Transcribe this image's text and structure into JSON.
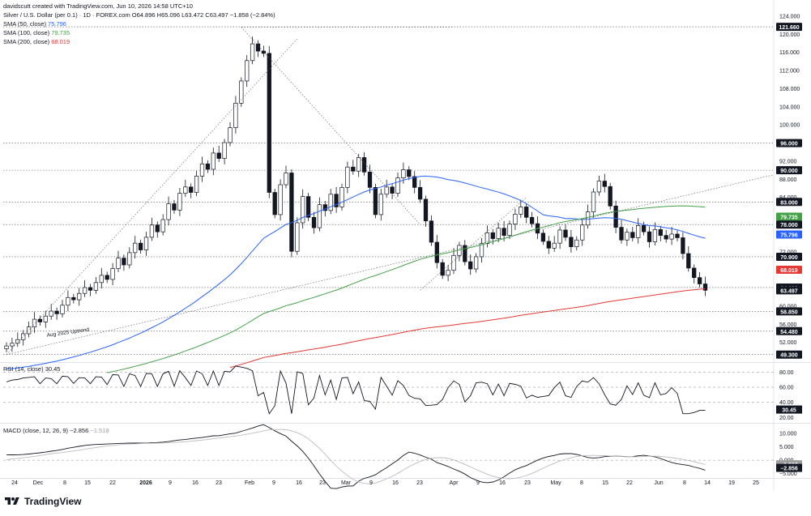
{
  "header": {
    "credit": "davidscutt created with TradingView.com, Jun 10, 2026 14:58 UTC+10",
    "symbol_line": "Silver / U.S. Dollar (per 0.1) · 1D · FOREX.com",
    "ohlc": "O64.896 H65.096 L63.472 C63.497 −1.858 (−2.84%)",
    "sma50_label": "SMA (50, close)",
    "sma50_value": "75.796",
    "sma100_label": "SMA (100, close)",
    "sma100_value": "79.735",
    "sma200_label": "SMA (200, close)",
    "sma200_value": "68.019"
  },
  "rsi": {
    "label": "RSI (14, close)",
    "value": "30.45"
  },
  "macd": {
    "label": "MACD (close, 12, 26, 9)",
    "value1": "−2.856",
    "value2": "−1.518"
  },
  "brand": {
    "name": "TradingView"
  },
  "annotation": "Aug 2025 Uptrend",
  "colors": {
    "sma50": "#2962ff",
    "sma100": "#43a047",
    "sma200": "#e53935",
    "candle": "#131722",
    "badge_dark": "#131722",
    "badge_green": "#43a047",
    "badge_blue": "#2962ff",
    "badge_red": "#e53935"
  },
  "chart_data": {
    "type": "candlestick",
    "xlabel": "",
    "ylabel": "",
    "x_ticks": [
      "24",
      "Dec",
      "8",
      "15",
      "22",
      "2026",
      "9",
      "16",
      "23",
      "Feb",
      "9",
      "16",
      "23",
      "Mar",
      "9",
      "16",
      "23",
      "Apr",
      "9",
      "16",
      "23",
      "May",
      "8",
      "15",
      "22",
      "Jun",
      "8",
      "14",
      "19",
      "25"
    ],
    "y_ticks": [
      52,
      56,
      60,
      64,
      68,
      72,
      76,
      80,
      84,
      88,
      92,
      96,
      100,
      104,
      108,
      112,
      116,
      120,
      124
    ],
    "ylim": [
      48,
      124
    ],
    "price_badges": [
      "121.660",
      "96.000",
      "90.000",
      "83.000",
      "79.735",
      "78.000",
      "75.796",
      "70.900",
      "68.019",
      "64.100",
      "63.497",
      "58.850",
      "54.480",
      "49.300"
    ],
    "horizontal_levels": [
      121.66,
      96.0,
      90.0,
      83.0,
      78.0,
      70.9,
      64.1,
      58.85,
      54.48,
      49.3
    ],
    "last_close": 63.497,
    "grid": false,
    "rsi_levels": [
      "80.00",
      "60.00",
      "40.00",
      "20.00"
    ],
    "rsi_last": "30.45",
    "macd_ticks": [
      "10.000",
      "5.000",
      "0.000",
      "−5.000"
    ],
    "series_note": "Daily OHLC, approximate: rally from ~51 late Nov 2025 to peak ~121.66 end Jan 2026, crash to ~64 early Feb, range 62–96 through Feb–May, decline to 63.497 on Jun 10 2026",
    "closes": [
      51.2,
      51.8,
      52.6,
      53.9,
      55.4,
      57.1,
      56.5,
      57.8,
      58.9,
      58.3,
      60.2,
      61.9,
      61.4,
      62.8,
      64.1,
      63.5,
      65.2,
      66.8,
      65.9,
      68.3,
      70.6,
      69.1,
      71.8,
      73.9,
      72.4,
      75.2,
      77.9,
      76.4,
      79.1,
      82.6,
      81.2,
      84.9,
      86.3,
      85.1,
      88.7,
      91.4,
      90.2,
      93.8,
      92.6,
      96.1,
      99.4,
      104.8,
      109.7,
      114.2,
      117.9,
      116.3,
      115.8,
      85.1,
      80.2,
      86.8,
      89.4,
      72.1,
      78.4,
      84.2,
      79.6,
      77.3,
      82.4,
      81.1,
      84.7,
      81.9,
      86.2,
      90.7,
      89.8,
      92.8,
      89.6,
      86.2,
      80.2,
      84.7,
      86.3,
      84.9,
      88.3,
      90.1,
      88.6,
      86.2,
      83.6,
      78.8,
      74.1,
      69.6,
      66.8,
      67.9,
      71.2,
      73.4,
      69.8,
      68.2,
      70.9,
      73.8,
      76.2,
      74.9,
      77.2,
      75.6,
      78.1,
      80.3,
      81.9,
      79.6,
      78.2,
      76.1,
      74.3,
      72.8,
      73.9,
      76.8,
      75.2,
      73.1,
      74.6,
      77.9,
      80.8,
      85.2,
      87.6,
      86.4,
      82.1,
      77.4,
      74.6,
      76.3,
      75.1,
      77.8,
      76.4,
      74.2,
      76.9,
      75.6,
      74.8,
      75.9,
      75.1,
      71.6,
      68.4,
      66.3,
      64.9,
      63.5
    ]
  }
}
